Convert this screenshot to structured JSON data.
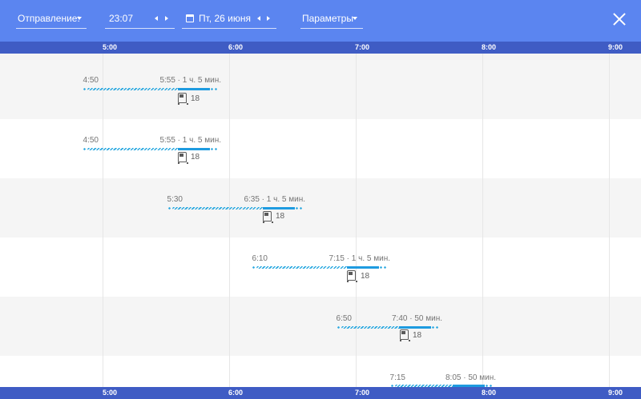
{
  "toolbar": {
    "departure_label": "Отправление:",
    "time_value": "23:07",
    "date_value": "Пт, 26 июня",
    "params_label": "Параметры"
  },
  "colors": {
    "toolbar_bg": "#5b85f0",
    "axis_bg": "#3f5cc4",
    "route_line": "#1e9be0",
    "route_dotted": "#29a8e0"
  },
  "icons": {
    "departure_dropdown": "chevron-down-icon",
    "time_prev": "chevron-left-icon",
    "time_next": "chevron-right-icon",
    "date_picker": "calendar-icon",
    "params_dropdown": "chevron-down-icon",
    "close": "close-icon",
    "bus": "bus-icon"
  },
  "hour_labels": [
    "5:00",
    "6:00",
    "7:00",
    "8:00",
    "9:00"
  ],
  "trips": [
    {
      "dep": "4:50",
      "arr_info": "5:55 · 1 ч. 5 мин.",
      "bus": "18"
    },
    {
      "dep": "4:50",
      "arr_info": "5:55 · 1 ч. 5 мин.",
      "bus": "18"
    },
    {
      "dep": "5:30",
      "arr_info": "6:35 · 1 ч. 5 мин.",
      "bus": "18"
    },
    {
      "dep": "6:10",
      "arr_info": "7:15 · 1 ч. 5 мин.",
      "bus": "18"
    },
    {
      "dep": "6:50",
      "arr_info": "7:40 · 50 мин.",
      "bus": "18"
    },
    {
      "dep": "7:15",
      "arr_info": "8:05 · 50 мин.",
      "bus": ""
    }
  ]
}
